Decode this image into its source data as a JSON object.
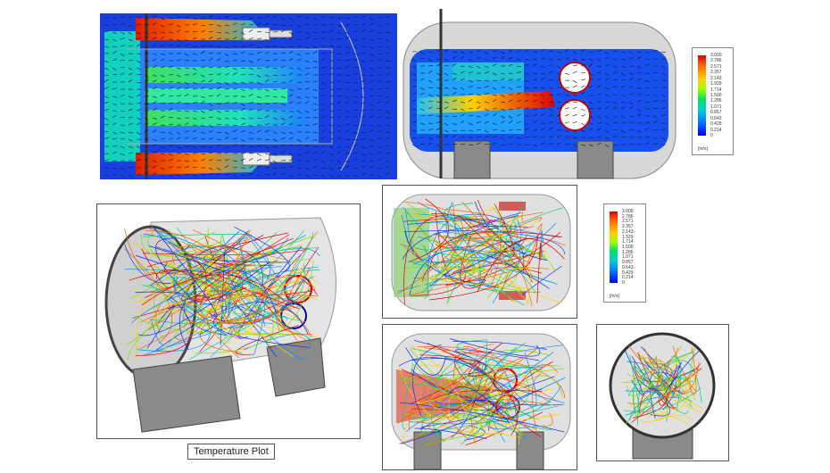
{
  "legend_top": {
    "ticks": [
      "3.000",
      "2.786",
      "2.571",
      "2.357",
      "2.143",
      "1.929",
      "1.714",
      "1.500",
      "1.286",
      "1.071",
      "0.857",
      "0.643",
      "0.429",
      "0.214",
      "0"
    ],
    "unit": "[m/s]"
  },
  "legend_mid": {
    "ticks": [
      "3.000",
      "2.786",
      "2.571",
      "2.357",
      "2.143",
      "1.929",
      "1.714",
      "1.500",
      "1.286",
      "1.071",
      "0.857",
      "0.643",
      "0.429",
      "0.214",
      "0"
    ],
    "unit": "[m/s]"
  },
  "caption": "Temperature Plot",
  "colors": {
    "low": "#0000ff",
    "mid": "#00e060",
    "high": "#e00000",
    "tank": "#d8d8d8",
    "support": "#7a7a7a"
  }
}
